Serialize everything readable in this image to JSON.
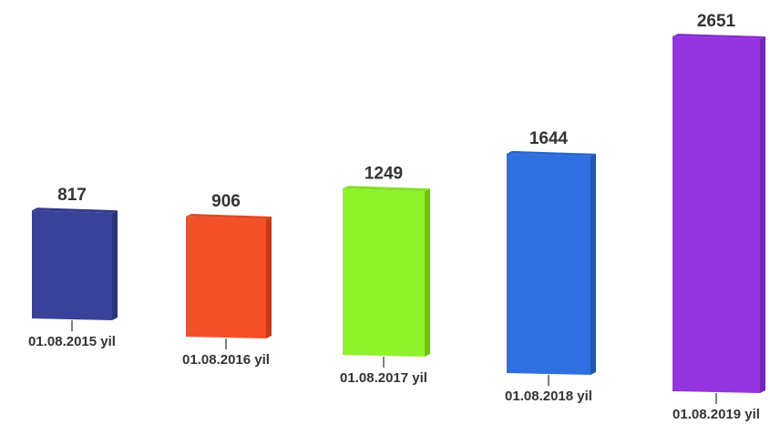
{
  "chart_data": {
    "type": "bar",
    "categories": [
      "01.08.2015 yil",
      "01.08.2016 yil",
      "01.08.2017 yil",
      "01.08.2018 yil",
      "01.08.2019 yil"
    ],
    "values": [
      817,
      906,
      1249,
      1644,
      2651
    ],
    "colors": [
      "#3a4199",
      "#f4502a",
      "#8ff22a",
      "#2f6fe0",
      "#9433e0"
    ]
  }
}
